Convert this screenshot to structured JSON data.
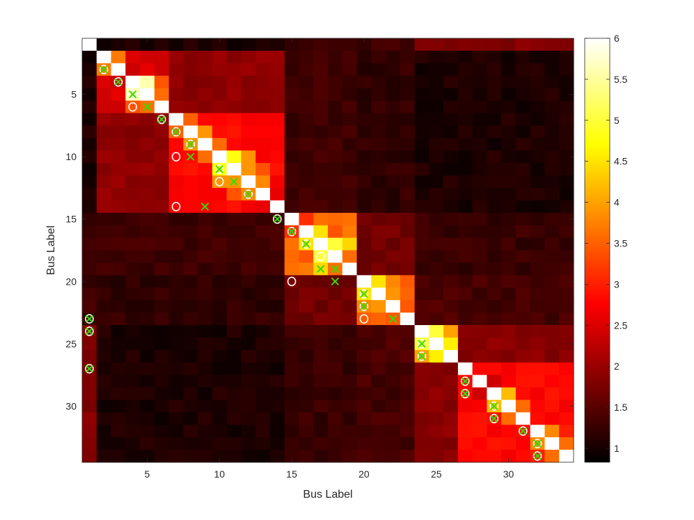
{
  "chart_data": {
    "type": "heatmap",
    "title": "",
    "xlabel": "Bus Label",
    "ylabel": "Bus Label",
    "n": 34,
    "x_ticks": [
      5,
      10,
      15,
      20,
      25,
      30
    ],
    "y_ticks": [
      5,
      10,
      15,
      20,
      25,
      30
    ],
    "color_range": [
      0.83,
      6
    ],
    "colorbar_ticks": [
      1,
      1.5,
      2,
      2.5,
      3,
      3.5,
      4,
      4.5,
      5,
      5.5,
      6
    ],
    "colormap": "hot",
    "groups": [
      {
        "start": 1,
        "end": 1
      },
      {
        "start": 2,
        "end": 6
      },
      {
        "start": 7,
        "end": 14
      },
      {
        "start": 15,
        "end": 19
      },
      {
        "start": 20,
        "end": 23
      },
      {
        "start": 24,
        "end": 26
      },
      {
        "start": 27,
        "end": 34
      }
    ],
    "block_levels": [
      [
        6.0,
        1.05,
        1.05,
        1.3,
        1.3,
        1.8,
        1.8
      ],
      [
        1.05,
        2.5,
        1.9,
        1.3,
        1.2,
        1.05,
        1.05
      ],
      [
        1.05,
        1.9,
        2.8,
        1.3,
        1.2,
        1.05,
        1.05
      ],
      [
        1.3,
        1.3,
        1.3,
        3.5,
        1.7,
        1.25,
        1.25
      ],
      [
        1.3,
        1.2,
        1.2,
        1.7,
        3.5,
        1.4,
        1.35
      ],
      [
        1.8,
        1.05,
        1.05,
        1.25,
        1.4,
        4.2,
        1.85
      ],
      [
        1.8,
        1.05,
        1.05,
        1.25,
        1.35,
        1.85,
        2.8
      ]
    ],
    "bright_cells": [
      [
        3,
        2,
        3.7
      ],
      [
        4,
        5,
        5.6
      ],
      [
        5,
        4,
        5.6
      ],
      [
        4,
        6,
        3.4
      ],
      [
        5,
        6,
        3.6
      ],
      [
        7,
        8,
        3.5
      ],
      [
        8,
        9,
        3.9
      ],
      [
        9,
        10,
        3.6
      ],
      [
        10,
        11,
        4.8
      ],
      [
        11,
        12,
        3.9
      ],
      [
        10,
        12,
        3.9
      ],
      [
        12,
        13,
        3.8
      ],
      [
        11,
        13,
        3.4
      ],
      [
        13,
        14,
        2.6
      ],
      [
        15,
        16,
        3.1
      ],
      [
        16,
        17,
        4.5
      ],
      [
        17,
        18,
        5.0
      ],
      [
        18,
        19,
        3.6
      ],
      [
        17,
        19,
        4.4
      ],
      [
        16,
        19,
        3.7
      ],
      [
        20,
        21,
        4.5
      ],
      [
        21,
        22,
        3.9
      ],
      [
        20,
        22,
        3.8
      ],
      [
        24,
        25,
        5.0
      ],
      [
        25,
        26,
        4.6
      ],
      [
        24,
        26,
        4.0
      ],
      [
        29,
        30,
        4.2
      ],
      [
        30,
        31,
        3.6
      ],
      [
        32,
        33,
        3.8
      ],
      [
        33,
        34,
        3.6
      ],
      [
        32,
        34,
        3.0
      ],
      [
        28,
        29,
        2.4
      ]
    ],
    "circle_markers": [
      [
        2,
        3
      ],
      [
        3,
        4
      ],
      [
        4,
        5
      ],
      [
        4,
        6
      ],
      [
        6,
        7
      ],
      [
        7,
        8
      ],
      [
        8,
        9
      ],
      [
        7,
        10
      ],
      [
        10,
        11
      ],
      [
        10,
        12
      ],
      [
        12,
        13
      ],
      [
        7,
        14
      ],
      [
        14,
        15
      ],
      [
        15,
        16
      ],
      [
        16,
        17
      ],
      [
        17,
        18
      ],
      [
        15,
        20
      ],
      [
        20,
        21
      ],
      [
        20,
        22
      ],
      [
        20,
        23
      ],
      [
        1,
        23
      ],
      [
        1,
        24
      ],
      [
        1,
        27
      ],
      [
        24,
        25
      ],
      [
        24,
        26
      ],
      [
        27,
        28
      ],
      [
        27,
        29
      ],
      [
        29,
        30
      ],
      [
        29,
        31
      ],
      [
        31,
        32
      ],
      [
        32,
        33
      ],
      [
        32,
        34
      ]
    ],
    "x_markers": [
      [
        2,
        3
      ],
      [
        3,
        4
      ],
      [
        4,
        5
      ],
      [
        5,
        6
      ],
      [
        6,
        7
      ],
      [
        7,
        8
      ],
      [
        8,
        9
      ],
      [
        8,
        10
      ],
      [
        10,
        11
      ],
      [
        11,
        12
      ],
      [
        12,
        13
      ],
      [
        9,
        14
      ],
      [
        14,
        15
      ],
      [
        15,
        16
      ],
      [
        16,
        17
      ],
      [
        17,
        19
      ],
      [
        18,
        19
      ],
      [
        18,
        20
      ],
      [
        20,
        21
      ],
      [
        20,
        22
      ],
      [
        22,
        23
      ],
      [
        1,
        23
      ],
      [
        1,
        24
      ],
      [
        1,
        27
      ],
      [
        24,
        25
      ],
      [
        24,
        26
      ],
      [
        27,
        28
      ],
      [
        27,
        29
      ],
      [
        29,
        30
      ],
      [
        29,
        31
      ],
      [
        31,
        32
      ],
      [
        32,
        33
      ],
      [
        32,
        34
      ]
    ],
    "marker_colors": {
      "circle": "#ffffff",
      "x": "#33dd00"
    }
  }
}
